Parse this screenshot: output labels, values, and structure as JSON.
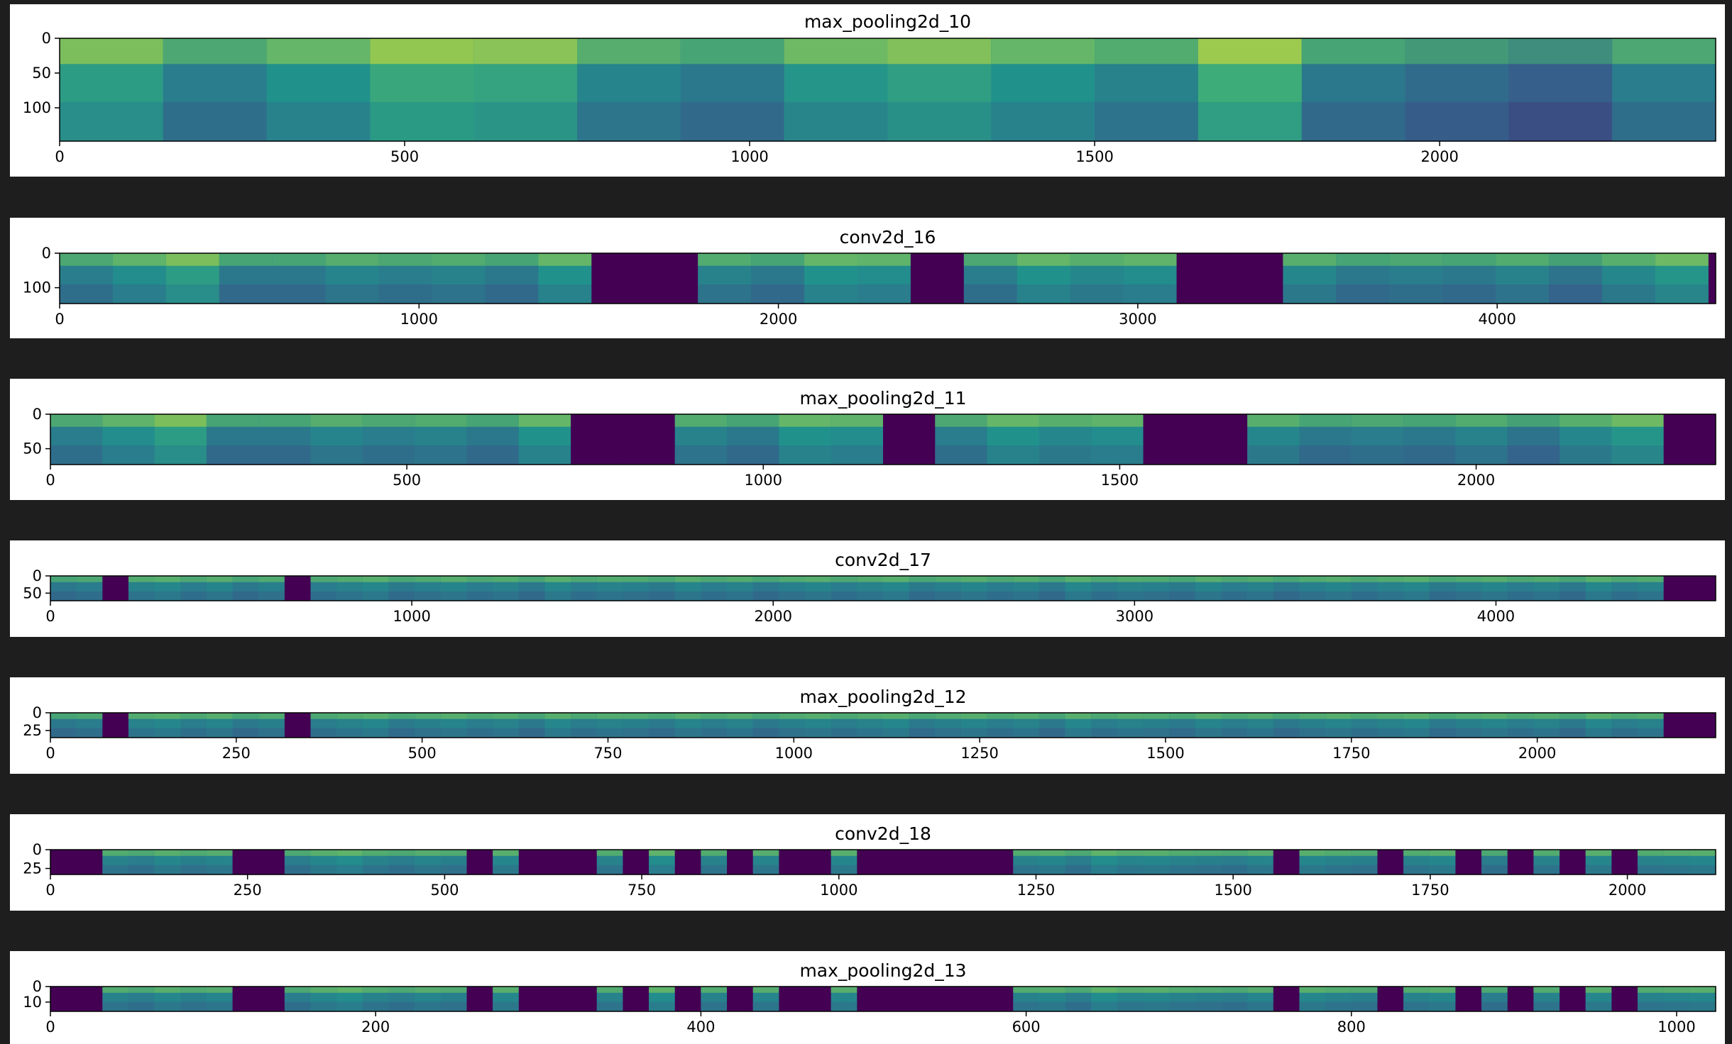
{
  "chart_data": [
    {
      "type": "heatmap",
      "title": "max_pooling2d_10",
      "colormap": "viridis",
      "x_range": [
        0,
        2400
      ],
      "y_range": [
        0,
        148
      ],
      "xticks": [
        0,
        500,
        1000,
        1500,
        2000
      ],
      "yticks": [
        0,
        50,
        100
      ],
      "tile_width": 150,
      "tiles": [
        0.55,
        0.42,
        0.5,
        0.6,
        0.58,
        0.45,
        0.4,
        0.52,
        0.56,
        0.5,
        0.44,
        0.62,
        0.4,
        0.35,
        0.3,
        0.42
      ]
    },
    {
      "type": "heatmap",
      "title": "conv2d_16",
      "colormap": "viridis",
      "x_range": [
        0,
        4608
      ],
      "y_range": [
        0,
        146
      ],
      "xticks": [
        0,
        1000,
        2000,
        3000,
        4000
      ],
      "yticks": [
        0,
        100
      ],
      "tile_width": 148,
      "tiles": [
        0.42,
        0.48,
        0.55,
        0.4,
        0.4,
        0.45,
        0.42,
        0.44,
        0.4,
        0.5,
        0.0,
        0.0,
        0.44,
        0.4,
        0.5,
        0.48,
        0.0,
        0.42,
        0.5,
        0.46,
        0.48,
        0.0,
        0.0,
        0.46,
        0.4,
        0.42,
        0.4,
        0.44,
        0.38,
        0.46,
        0.52,
        0.0
      ]
    },
    {
      "type": "heatmap",
      "title": "max_pooling2d_11",
      "colormap": "viridis",
      "x_range": [
        0,
        2336
      ],
      "y_range": [
        0,
        73
      ],
      "xticks": [
        0,
        500,
        1000,
        1500,
        2000
      ],
      "yticks": [
        0,
        50
      ],
      "tile_width": 73,
      "tiles": [
        0.42,
        0.48,
        0.55,
        0.4,
        0.4,
        0.45,
        0.42,
        0.44,
        0.4,
        0.5,
        0.0,
        0.0,
        0.44,
        0.4,
        0.5,
        0.48,
        0.0,
        0.42,
        0.5,
        0.46,
        0.48,
        0.0,
        0.0,
        0.46,
        0.4,
        0.42,
        0.4,
        0.44,
        0.38,
        0.46,
        0.52,
        0.0
      ]
    },
    {
      "type": "heatmap",
      "title": "conv2d_17",
      "colormap": "viridis",
      "x_range": [
        0,
        4608
      ],
      "y_range": [
        0,
        72
      ],
      "xticks": [
        0,
        1000,
        2000,
        3000,
        4000
      ],
      "yticks": [
        0,
        50
      ],
      "tile_width": 72,
      "tiles": [
        0.4,
        0.42,
        0.0,
        0.44,
        0.46,
        0.42,
        0.45,
        0.4,
        0.43,
        0.0,
        0.42,
        0.44,
        0.46,
        0.41,
        0.43,
        0.45,
        0.42,
        0.44,
        0.4,
        0.46,
        0.42,
        0.44,
        0.43,
        0.41,
        0.45,
        0.42,
        0.44,
        0.4,
        0.43,
        0.45,
        0.42,
        0.44,
        0.46,
        0.41,
        0.43,
        0.45,
        0.42,
        0.44,
        0.4,
        0.46,
        0.42,
        0.44,
        0.43,
        0.41,
        0.45,
        0.42,
        0.44,
        0.4,
        0.43,
        0.45,
        0.42,
        0.44,
        0.46,
        0.41,
        0.43,
        0.45,
        0.42,
        0.44,
        0.4,
        0.46,
        0.42,
        0.44,
        0.0,
        0.0
      ]
    },
    {
      "type": "heatmap",
      "title": "max_pooling2d_12",
      "colormap": "viridis",
      "x_range": [
        0,
        2240
      ],
      "y_range": [
        0,
        35
      ],
      "xticks": [
        0,
        250,
        500,
        750,
        1000,
        1250,
        1500,
        1750,
        2000
      ],
      "yticks": [
        0,
        25
      ],
      "tile_width": 35,
      "tiles": [
        0.4,
        0.42,
        0.0,
        0.44,
        0.46,
        0.42,
        0.45,
        0.4,
        0.43,
        0.0,
        0.42,
        0.44,
        0.46,
        0.41,
        0.43,
        0.45,
        0.42,
        0.44,
        0.4,
        0.46,
        0.42,
        0.44,
        0.43,
        0.41,
        0.45,
        0.42,
        0.44,
        0.4,
        0.43,
        0.45,
        0.42,
        0.44,
        0.46,
        0.41,
        0.43,
        0.45,
        0.42,
        0.44,
        0.4,
        0.46,
        0.42,
        0.44,
        0.43,
        0.41,
        0.45,
        0.42,
        0.44,
        0.4,
        0.43,
        0.45,
        0.42,
        0.44,
        0.46,
        0.41,
        0.43,
        0.45,
        0.42,
        0.44,
        0.4,
        0.46,
        0.42,
        0.44,
        0.0,
        0.0
      ]
    },
    {
      "type": "heatmap",
      "title": "conv2d_18",
      "colormap": "viridis",
      "x_range": [
        0,
        2112
      ],
      "y_range": [
        0,
        33
      ],
      "xticks": [
        0,
        250,
        500,
        750,
        1000,
        1250,
        1500,
        1750,
        2000
      ],
      "yticks": [
        0,
        25
      ],
      "tile_width": 33,
      "tiles": [
        0.0,
        0.0,
        0.44,
        0.42,
        0.46,
        0.43,
        0.45,
        0.0,
        0.0,
        0.42,
        0.46,
        0.48,
        0.44,
        0.42,
        0.45,
        0.43,
        0.0,
        0.46,
        0.0,
        0.0,
        0.0,
        0.44,
        0.0,
        0.48,
        0.0,
        0.44,
        0.0,
        0.45,
        0.0,
        0.0,
        0.46,
        0.0,
        0.0,
        0.0,
        0.0,
        0.0,
        0.0,
        0.44,
        0.46,
        0.42,
        0.48,
        0.45,
        0.46,
        0.44,
        0.43,
        0.42,
        0.45,
        0.0,
        0.46,
        0.44,
        0.43,
        0.0,
        0.44,
        0.46,
        0.0,
        0.42,
        0.0,
        0.44,
        0.0,
        0.46,
        0.0,
        0.44,
        0.45,
        0.46
      ]
    },
    {
      "type": "heatmap",
      "title": "max_pooling2d_13",
      "colormap": "viridis",
      "x_range": [
        0,
        1024
      ],
      "y_range": [
        0,
        16
      ],
      "xticks": [
        0,
        200,
        400,
        600,
        800,
        1000
      ],
      "yticks": [
        0,
        10
      ],
      "tile_width": 16,
      "tiles": [
        0.0,
        0.0,
        0.44,
        0.42,
        0.46,
        0.43,
        0.45,
        0.0,
        0.0,
        0.42,
        0.46,
        0.48,
        0.44,
        0.42,
        0.45,
        0.43,
        0.0,
        0.46,
        0.0,
        0.0,
        0.0,
        0.44,
        0.0,
        0.48,
        0.0,
        0.44,
        0.0,
        0.45,
        0.0,
        0.0,
        0.46,
        0.0,
        0.0,
        0.0,
        0.0,
        0.0,
        0.0,
        0.44,
        0.46,
        0.42,
        0.48,
        0.45,
        0.46,
        0.44,
        0.43,
        0.42,
        0.45,
        0.0,
        0.46,
        0.44,
        0.43,
        0.0,
        0.44,
        0.46,
        0.0,
        0.42,
        0.0,
        0.44,
        0.0,
        0.46,
        0.0,
        0.44,
        0.45,
        0.46
      ]
    }
  ]
}
